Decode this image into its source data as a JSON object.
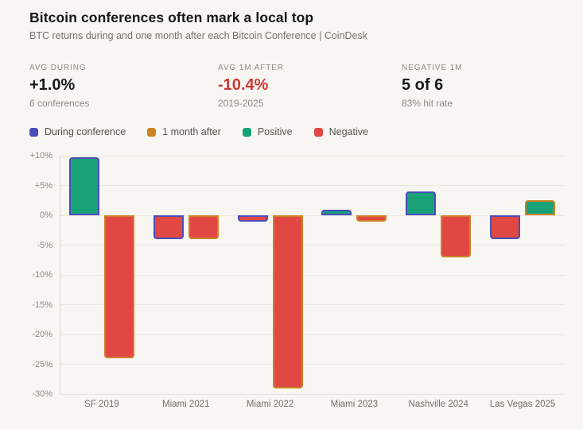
{
  "header": {
    "title": "Bitcoin conferences often mark a local top",
    "subtitle": "BTC returns during and one month after each Bitcoin Conference | CoinDesk"
  },
  "stats": [
    {
      "label": "AVG DURING",
      "value": "+1.0%",
      "sub": "6 conferences",
      "value_color": "#1a1a1a"
    },
    {
      "label": "AVG 1M AFTER",
      "value": "-10.4%",
      "sub": "2019-2025",
      "value_color": "#cf3832"
    },
    {
      "label": "NEGATIVE 1M",
      "value": "5 of 6",
      "sub": "83% hit rate",
      "value_color": "#1a1a1a"
    }
  ],
  "legend": [
    {
      "label": "During conference",
      "color": "#4c4cbd"
    },
    {
      "label": "1 month after",
      "color": "#cc8322"
    },
    {
      "label": "Positive",
      "color": "#18a176"
    },
    {
      "label": "Negative",
      "color": "#e14843"
    }
  ],
  "chart_data": {
    "type": "bar",
    "categories": [
      "SF 2019",
      "Miami 2021",
      "Miami 2022",
      "Miami 2023",
      "Nashville 2024",
      "Las Vegas 2025"
    ],
    "series": [
      {
        "name": "During conference",
        "values": [
          9.8,
          -4,
          -1,
          1,
          4,
          -4
        ]
      },
      {
        "name": "1 month after",
        "values": [
          -24,
          -4,
          -29,
          -1,
          -7,
          2.5
        ]
      }
    ],
    "units": "%",
    "ylim": [
      -30,
      10
    ],
    "yticks": [
      10,
      5,
      0,
      -5,
      -10,
      -15,
      -20,
      -25,
      -30
    ],
    "ytick_labels": [
      "+10%",
      "+5%",
      "0%",
      "-5%",
      "-10%",
      "-15%",
      "-20%",
      "-25%",
      "-30%"
    ],
    "grid": true,
    "legend_position": "top-left",
    "colors": {
      "during_border": "#4c4cbd",
      "after_border": "#cc8322",
      "positive_fill": "#18a176",
      "negative_fill": "#e14843"
    }
  }
}
